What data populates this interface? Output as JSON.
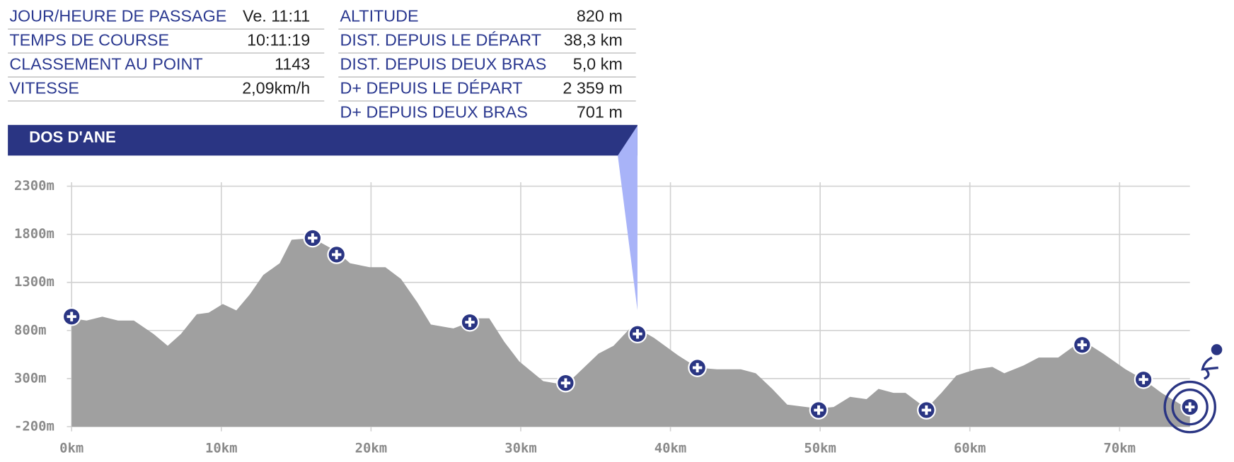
{
  "info": {
    "left": [
      {
        "label": "JOUR/HEURE DE PASSAGE",
        "value": "Ve. 11:11"
      },
      {
        "label": "TEMPS DE COURSE",
        "value": "10:11:19"
      },
      {
        "label": "CLASSEMENT AU POINT",
        "value": "1143"
      },
      {
        "label": "VITESSE",
        "value": "2,09km/h"
      }
    ],
    "right": [
      {
        "label": "ALTITUDE",
        "value": "820 m"
      },
      {
        "label": "DIST. DEPUIS LE DÉPART",
        "value": "38,3 km"
      },
      {
        "label": "DIST. DEPUIS DEUX BRAS",
        "value": "5,0 km"
      },
      {
        "label": "D+ DEPUIS LE DÉPART",
        "value": "2 359 m"
      },
      {
        "label": "D+ DEPUIS DEUX BRAS",
        "value": "701 m"
      }
    ],
    "header": "DOS D'ANE"
  },
  "chart_data": {
    "type": "area",
    "color": "#a0a0a0",
    "grid": true,
    "x": [
      0,
      1.0,
      2.05,
      3.1,
      4.16,
      5.47,
      6.42,
      7.3,
      8.36,
      9.15,
      10.1,
      11.0,
      11.9,
      12.8,
      13.9,
      14.7,
      16.1,
      17.7,
      18.6,
      19.9,
      20.96,
      22.0,
      23.1,
      24.0,
      25.5,
      26.6,
      27.0,
      27.9,
      28.9,
      29.9,
      31.5,
      33.0,
      34.1,
      35.2,
      36.2,
      37.3,
      37.8,
      38.9,
      40.5,
      41.8,
      43.1,
      44.7,
      45.7,
      46.8,
      47.8,
      49.9,
      50.9,
      52.0,
      53.1,
      53.9,
      54.9,
      55.7,
      57.1,
      58.1,
      59.1,
      60.4,
      61.5,
      62.3,
      63.6,
      64.6,
      65.9,
      67.5,
      68.9,
      70.4,
      71.6,
      72.8,
      74.1,
      74.7
    ],
    "values": [
      927,
      903,
      944,
      903,
      903,
      764,
      641,
      764,
      968,
      985,
      1075,
      1009,
      1175,
      1377,
      1499,
      1744,
      1761,
      1622,
      1499,
      1458,
      1458,
      1336,
      1091,
      862,
      821,
      886,
      927,
      927,
      682,
      478,
      274,
      233,
      396,
      560,
      641,
      821,
      821,
      723,
      543,
      413,
      396,
      396,
      355,
      192,
      29,
      -12,
      4,
      110,
      86,
      192,
      151,
      151,
      -12,
      151,
      331,
      396,
      421,
      355,
      437,
      519,
      519,
      699,
      560,
      396,
      290,
      151,
      29,
      -12
    ],
    "markers": {
      "color": "#2a3583",
      "x": [
        0,
        16.1,
        17.7,
        26.6,
        33.0,
        37.8,
        41.8,
        49.9,
        57.1,
        67.5,
        71.6,
        74.7
      ],
      "y": [
        944,
        1761,
        1589,
        886,
        254,
        764,
        413,
        -28,
        -28,
        650,
        290,
        4
      ]
    },
    "xlim": [
      0,
      74.7
    ],
    "ylim": [
      -200,
      2300
    ],
    "xticks": [
      {
        "value": 0,
        "label": "0km"
      },
      {
        "value": 10,
        "label": "10km"
      },
      {
        "value": 20,
        "label": "20km"
      },
      {
        "value": 30,
        "label": "30km"
      },
      {
        "value": 40,
        "label": "40km"
      },
      {
        "value": 50,
        "label": "50km"
      },
      {
        "value": 60,
        "label": "60km"
      },
      {
        "value": 70,
        "label": "70km"
      }
    ],
    "yticks": [
      {
        "value": -200,
        "label": "-200m"
      },
      {
        "value": 300,
        "label": "300m"
      },
      {
        "value": 800,
        "label": "800m"
      },
      {
        "value": 1300,
        "label": "1300m"
      },
      {
        "value": 1800,
        "label": "1800m"
      },
      {
        "value": 2300,
        "label": "2300m"
      }
    ]
  }
}
